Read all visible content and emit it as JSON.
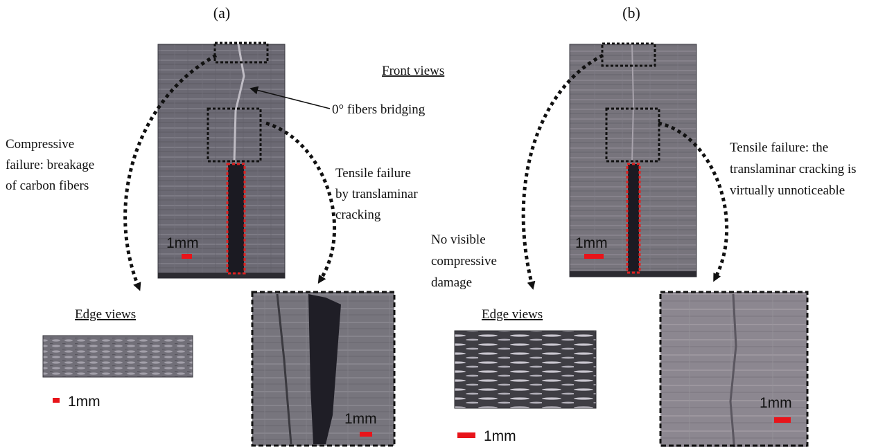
{
  "panels": {
    "a": {
      "label": "(a)",
      "front_views_label": "Front views",
      "fibers_label": "0° fibers bridging",
      "compressive_label": [
        "Compressive",
        "failure: breakage",
        "of carbon fibers"
      ],
      "tensile_label": [
        "Tensile failure",
        "by translaminar",
        "cracking"
      ],
      "edge_views_label": "Edge views",
      "scale_front": "1mm",
      "scale_edge": "1mm",
      "scale_zoom": "1mm"
    },
    "b": {
      "label": "(b)",
      "no_damage_label": [
        "No visible",
        "compressive",
        "damage"
      ],
      "tensile_label": [
        "Tensile failure: the",
        "translaminar cracking is",
        "virtually unnoticeable"
      ],
      "edge_views_label": "Edge views",
      "scale_front": "1mm",
      "scale_edge": "1mm",
      "scale_zoom": "1mm"
    }
  },
  "colors": {
    "scale_bar": "#e8141a",
    "crack_outline": "#e02020",
    "dotted_outline": "#111111",
    "specimen_gray": "#6e6c76"
  }
}
